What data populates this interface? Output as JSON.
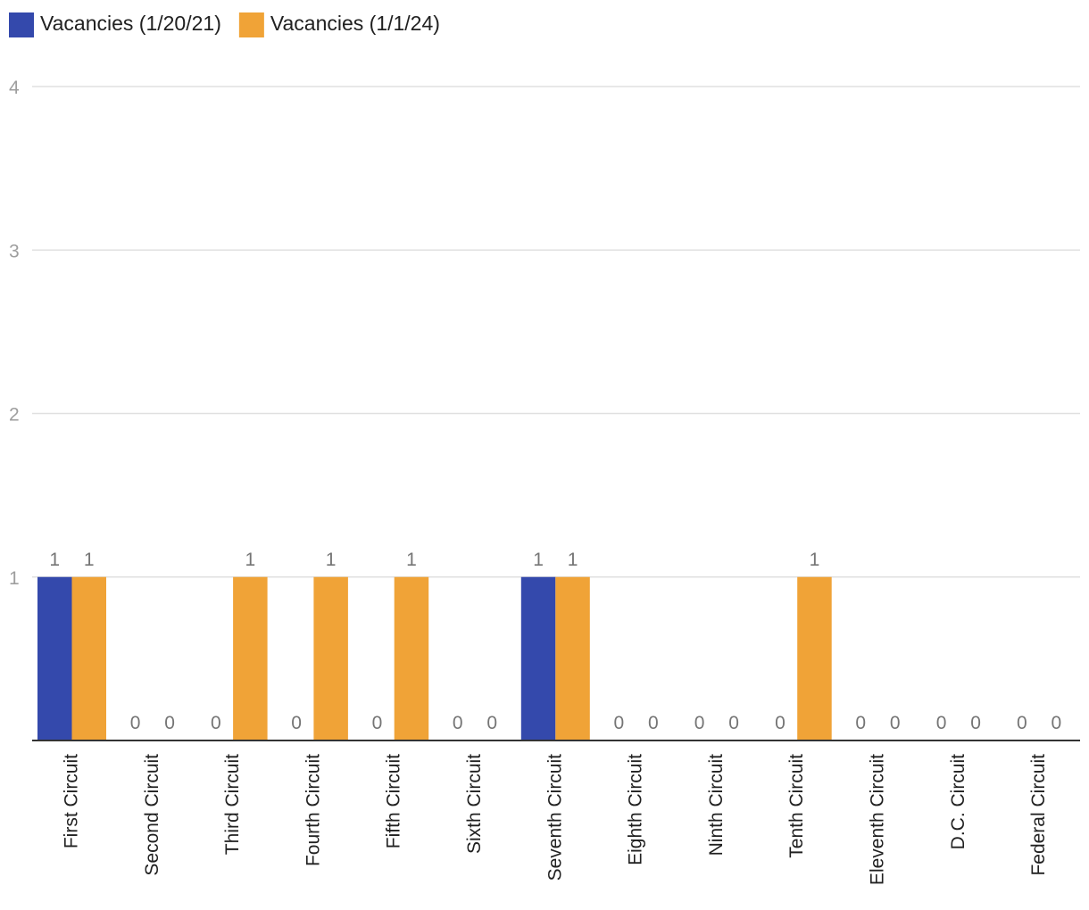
{
  "chart_data": {
    "type": "bar",
    "title": "",
    "xlabel": "",
    "ylabel": "",
    "ylim": [
      0,
      4
    ],
    "yticks": [
      1,
      2,
      3,
      4
    ],
    "grid": true,
    "legend_position": "top-left",
    "categories": [
      "First Circuit",
      "Second Circuit",
      "Third Circuit",
      "Fourth Circuit",
      "Fifth Circuit",
      "Sixth Circuit",
      "Seventh Circuit",
      "Eighth Circuit",
      "Ninth Circuit",
      "Tenth Circuit",
      "Eleventh Circuit",
      "D.C. Circuit",
      "Federal Circuit"
    ],
    "series": [
      {
        "name": "Vacancies (1/20/21)",
        "color": "#3449ac",
        "values": [
          1,
          0,
          0,
          0,
          0,
          0,
          1,
          0,
          0,
          0,
          0,
          0,
          0
        ]
      },
      {
        "name": "Vacancies (1/1/24)",
        "color": "#f0a337",
        "values": [
          1,
          0,
          1,
          1,
          1,
          0,
          1,
          0,
          0,
          1,
          0,
          0,
          0
        ]
      }
    ]
  }
}
